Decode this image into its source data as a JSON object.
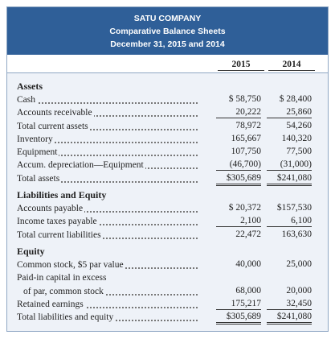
{
  "header": {
    "lines": [
      "SATU COMPANY",
      "Comparative Balance Sheets",
      "December 31, 2015 and 2014"
    ]
  },
  "columns": [
    "2015",
    "2014"
  ],
  "sections": [
    {
      "title": "Assets",
      "rows": [
        {
          "label": "Cash",
          "values": [
            "$ 58,750",
            "$ 28,400"
          ]
        },
        {
          "label": "Accounts receivable",
          "values": [
            "20,222",
            "25,860"
          ],
          "underline": "single"
        },
        {
          "label": "Total current assets",
          "values": [
            "78,972",
            "54,260"
          ]
        },
        {
          "label": "Inventory",
          "values": [
            "165,667",
            "140,320"
          ]
        },
        {
          "label": "Equipment",
          "values": [
            "107,750",
            "77,500"
          ]
        },
        {
          "label": "Accum. depreciation—Equipment",
          "values": [
            "(46,700)",
            "(31,000)"
          ],
          "underline": "single"
        },
        {
          "label": "Total assets",
          "values": [
            "$305,689",
            "$241,080"
          ],
          "underline": "double"
        }
      ]
    },
    {
      "title": "Liabilities and Equity",
      "rows": [
        {
          "label": "Accounts payable",
          "values": [
            "$ 20,372",
            "$157,530"
          ]
        },
        {
          "label": "Income taxes payable",
          "values": [
            "2,100",
            "6,100"
          ],
          "underline": "single"
        },
        {
          "label": "Total current liabilities",
          "values": [
            "22,472",
            "163,630"
          ]
        }
      ]
    },
    {
      "title": "Equity",
      "rows": [
        {
          "label": "Common stock, $5 par value",
          "values": [
            "40,000",
            "25,000"
          ]
        },
        {
          "label": "Paid-in capital in excess",
          "values": []
        },
        {
          "label": "of par, common stock",
          "values": [
            "68,000",
            "20,000"
          ],
          "indent": true
        },
        {
          "label": "Retained earnings",
          "values": [
            "175,217",
            "32,450"
          ],
          "underline": "single"
        },
        {
          "label": "Total liabilities and equity",
          "values": [
            "$305,689",
            "$241,080"
          ],
          "underline": "double"
        }
      ]
    }
  ]
}
